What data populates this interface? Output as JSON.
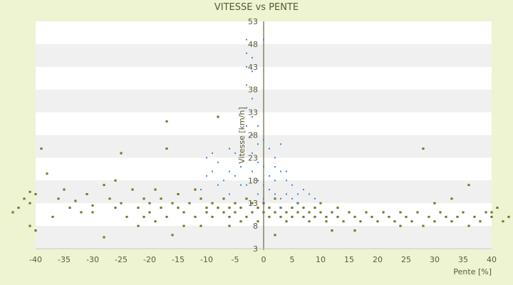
{
  "chart_data": {
    "type": "scatter",
    "title": "VITESSE vs PENTE",
    "xlabel": "Pente [%]",
    "ylabel": "Vitesse [km/h]",
    "xlim": [
      -40,
      40
    ],
    "ylim": [
      3,
      53
    ],
    "x_ticks": [
      "-40",
      "-35",
      "-30",
      "-25",
      "-20",
      "-15",
      "-10",
      "-5",
      "0",
      "5",
      "10",
      "15",
      "20",
      "25",
      "30",
      "35",
      "40"
    ],
    "y_ticks": [
      "53",
      "48",
      "43",
      "38",
      "33",
      "28",
      "23",
      "18",
      "13",
      "8",
      "3"
    ],
    "grid": "horizontal bands",
    "legend": "none",
    "colors": {
      "background": "#eef3d2",
      "band_light": "#ffffff",
      "band_dark": "#f0f0f0",
      "series_main": "#7a8a10",
      "series_main_edge": "#333300",
      "series_fast": "#3a8ad6",
      "text": "#5a5a38"
    },
    "series": [
      {
        "points": [
          [
            -43,
            12
          ],
          [
            -42,
            14
          ],
          [
            -41,
            15.5
          ],
          [
            -41,
            13
          ],
          [
            -41,
            8
          ],
          [
            -40,
            15
          ],
          [
            -39,
            25
          ],
          [
            -38,
            19.5
          ],
          [
            -36,
            14
          ],
          [
            -35,
            16
          ],
          [
            -34,
            12
          ],
          [
            -33,
            13.5
          ],
          [
            -32,
            11
          ],
          [
            -31,
            15
          ],
          [
            -30,
            12.5
          ],
          [
            -30,
            11
          ],
          [
            -28,
            17
          ],
          [
            -28,
            5.5
          ],
          [
            -27,
            14
          ],
          [
            -26,
            12
          ],
          [
            -26,
            18
          ],
          [
            -25,
            13
          ],
          [
            -25,
            24
          ],
          [
            -24,
            10
          ],
          [
            -23,
            16
          ],
          [
            -22,
            12
          ],
          [
            -21,
            14
          ],
          [
            -21,
            10
          ],
          [
            -20,
            13
          ],
          [
            -20,
            11
          ],
          [
            -19,
            16
          ],
          [
            -19,
            9
          ],
          [
            -18,
            12
          ],
          [
            -18,
            14
          ],
          [
            -17,
            31
          ],
          [
            -17,
            25
          ],
          [
            -17,
            10
          ],
          [
            -16,
            13
          ],
          [
            -16,
            6
          ],
          [
            -15,
            12
          ],
          [
            -15,
            15
          ],
          [
            -14,
            11
          ],
          [
            -13,
            13
          ],
          [
            -12,
            10
          ],
          [
            -11,
            14
          ],
          [
            -11,
            8
          ],
          [
            -10,
            11
          ],
          [
            -10,
            12
          ],
          [
            -9,
            13
          ],
          [
            -9,
            10
          ],
          [
            -8,
            12
          ],
          [
            -8,
            32
          ],
          [
            -7,
            11
          ],
          [
            -7,
            14
          ],
          [
            -6,
            10
          ],
          [
            -6,
            12
          ],
          [
            -5,
            13
          ],
          [
            -5,
            11
          ],
          [
            -4,
            12
          ],
          [
            -4,
            9
          ],
          [
            -3,
            14
          ],
          [
            -3,
            10
          ],
          [
            -2,
            11
          ],
          [
            -2,
            13
          ],
          [
            -1,
            12
          ],
          [
            -1,
            9
          ],
          [
            0,
            11
          ],
          [
            0,
            13
          ],
          [
            1,
            10
          ],
          [
            1,
            12
          ],
          [
            2,
            11
          ],
          [
            2,
            14
          ],
          [
            3,
            10
          ],
          [
            3,
            12
          ],
          [
            4,
            11
          ],
          [
            4,
            9
          ],
          [
            5,
            12
          ],
          [
            5,
            10
          ],
          [
            6,
            11
          ],
          [
            6,
            13
          ],
          [
            7,
            10
          ],
          [
            7,
            12
          ],
          [
            8,
            11
          ],
          [
            8,
            9
          ],
          [
            9,
            12
          ],
          [
            9,
            10
          ],
          [
            10,
            11
          ],
          [
            10,
            13
          ],
          [
            11,
            10
          ],
          [
            11,
            9
          ],
          [
            12,
            11
          ],
          [
            13,
            10
          ],
          [
            13,
            12
          ],
          [
            14,
            9
          ],
          [
            15,
            11
          ],
          [
            16,
            10
          ],
          [
            17,
            9
          ],
          [
            18,
            11
          ],
          [
            19,
            10
          ],
          [
            20,
            9
          ],
          [
            21,
            11
          ],
          [
            22,
            10
          ],
          [
            23,
            9
          ],
          [
            24,
            11
          ],
          [
            25,
            10
          ],
          [
            26,
            9
          ],
          [
            27,
            11
          ],
          [
            28,
            25
          ],
          [
            29,
            10
          ],
          [
            30,
            9
          ],
          [
            31,
            11
          ],
          [
            32,
            10
          ],
          [
            33,
            9
          ],
          [
            34,
            10
          ],
          [
            35,
            11
          ],
          [
            36,
            8
          ],
          [
            37,
            10
          ],
          [
            38,
            9
          ],
          [
            39,
            11
          ],
          [
            40,
            10
          ],
          [
            41,
            12
          ],
          [
            42,
            9
          ],
          [
            43,
            10
          ],
          [
            44,
            9
          ],
          [
            -44,
            11
          ],
          [
            -40,
            7
          ],
          [
            -37,
            10
          ],
          [
            -22,
            8
          ],
          [
            -14,
            8
          ],
          [
            -12,
            16
          ],
          [
            -6,
            8
          ],
          [
            2,
            6
          ],
          [
            12,
            7
          ],
          [
            16,
            7
          ],
          [
            24,
            8
          ],
          [
            28,
            8
          ],
          [
            30,
            13
          ],
          [
            33,
            14
          ],
          [
            36,
            17
          ],
          [
            40,
            11
          ]
        ]
      },
      {
        "points": [
          [
            -3,
            49
          ],
          [
            -3,
            46
          ],
          [
            -2,
            45
          ],
          [
            -3,
            43
          ],
          [
            -2,
            42
          ],
          [
            -3,
            39
          ],
          [
            -2,
            36
          ],
          [
            -3,
            34
          ],
          [
            -2,
            32
          ],
          [
            -3,
            30
          ],
          [
            -2,
            28
          ],
          [
            -1,
            26
          ],
          [
            -2,
            24
          ],
          [
            -1,
            22
          ],
          [
            -2,
            20
          ],
          [
            -1,
            18
          ],
          [
            0,
            17
          ],
          [
            1,
            16
          ],
          [
            -1,
            15
          ],
          [
            0,
            14
          ],
          [
            2,
            15
          ],
          [
            3,
            14
          ],
          [
            1,
            19
          ],
          [
            2,
            21
          ],
          [
            3,
            20
          ],
          [
            4,
            18
          ],
          [
            2,
            23
          ],
          [
            1,
            25
          ],
          [
            3,
            26
          ],
          [
            0,
            27
          ],
          [
            -4,
            21
          ],
          [
            -5,
            19
          ],
          [
            -6,
            20
          ],
          [
            -7,
            18
          ],
          [
            -8,
            22
          ],
          [
            -9,
            20
          ],
          [
            -10,
            19
          ],
          [
            -10,
            23
          ],
          [
            -11,
            16
          ],
          [
            -6,
            15
          ],
          [
            -5,
            24
          ],
          [
            -4,
            17
          ],
          [
            4,
            15
          ],
          [
            5,
            14
          ],
          [
            6,
            15
          ],
          [
            7,
            16
          ],
          [
            8,
            15
          ],
          [
            9,
            14
          ],
          [
            6,
            13
          ],
          [
            3,
            12
          ],
          [
            0,
            49
          ],
          [
            0,
            21
          ],
          [
            -1,
            30
          ],
          [
            2,
            18
          ],
          [
            4,
            20
          ],
          [
            5,
            17
          ],
          [
            -3,
            17
          ],
          [
            -6,
            25
          ],
          [
            -8,
            17
          ],
          [
            -9,
            24
          ]
        ]
      }
    ]
  }
}
